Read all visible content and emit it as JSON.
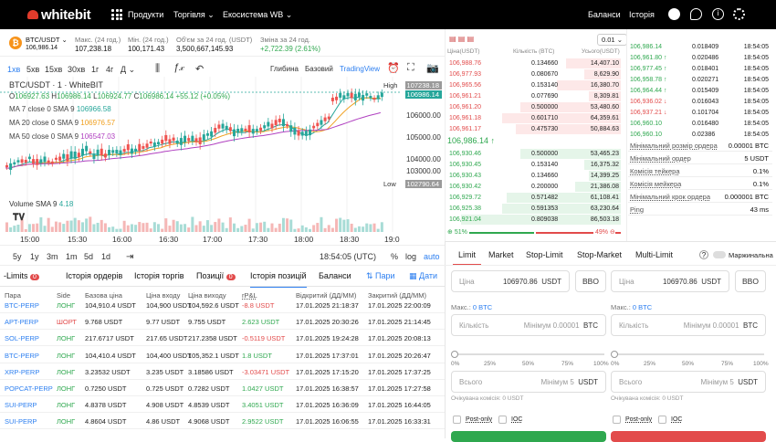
{
  "nav": {
    "logo": "whitebit",
    "items": [
      "Продукти",
      "Торгівля",
      "Екосистема WB"
    ],
    "balances": "Баланси",
    "history": "Історія"
  },
  "ticker": {
    "pair": "BTC/USDT",
    "price": "106,986.14",
    "max_label": "Макс. (24 год.)",
    "max": "107,238.18",
    "min_label": "Мін. (24 год.)",
    "min": "100,171.43",
    "vol_label": "Об'єм за 24 год. (USDT)",
    "vol": "3,500,667,145.93",
    "chg_label": "Зміна за 24 год.",
    "chg": "+2,722.39 (2.61%)"
  },
  "toolbar": {
    "intervals": [
      "1хв",
      "5хв",
      "15хв",
      "30хв",
      "1г",
      "4г",
      "Д"
    ],
    "views": [
      "Глибина",
      "Базовий",
      "TradingView"
    ]
  },
  "chart": {
    "symbol": "BTC/USDT · 1 · WhiteBIT",
    "o": "106927.63",
    "h": "106986.14",
    "l": "106924.77",
    "c": "106986.14",
    "change": "+55.12 (+0.05%)",
    "ma": [
      {
        "label": "MA 7 close 0 SMA 9",
        "value": "106966.58",
        "color": "#26a69a"
      },
      {
        "label": "MA 20 close 0 SMA 9",
        "value": "106976.57",
        "color": "#f0a020"
      },
      {
        "label": "MA 50 close 0 SMA 9",
        "value": "106547.03",
        "color": "#b040c0"
      }
    ],
    "high_label": "High",
    "high": "107238.18",
    "last": "106986.14",
    "low_label": "Low",
    "low": "102790.64",
    "yticks": [
      "106000.00",
      "105000.00",
      "104000.00",
      "103000.00"
    ],
    "xticks": [
      "15:00",
      "15:30",
      "16:00",
      "16:30",
      "17:00",
      "17:30",
      "18:00",
      "18:30",
      "19:0"
    ],
    "volume_label": "Volume SMA 9",
    "volume_val": "4.18"
  },
  "ranges": {
    "items": [
      "5y",
      "1y",
      "3m",
      "1m",
      "5d",
      "1d"
    ],
    "time": "18:54:05 (UTC)",
    "pct": "%",
    "log": "log",
    "auto": "auto"
  },
  "orderbook": {
    "group": "0.01",
    "h_price": "Ціна(USDT)",
    "h_qty": "Кількість (BTC)",
    "h_total": "Усього(USDT)",
    "last": "106,986.14 ↑",
    "asks": [
      [
        "106,988.76",
        "0.134660",
        "14,407.10"
      ],
      [
        "106,977.93",
        "0.080670",
        "8,629.90"
      ],
      [
        "106,965.56",
        "0.153140",
        "16,380.70"
      ],
      [
        "106,961.21",
        "0.077690",
        "8,309.81"
      ],
      [
        "106,961.20",
        "0.500000",
        "53,480.60"
      ],
      [
        "106,961.18",
        "0.601710",
        "64,359.61"
      ],
      [
        "106,961.17",
        "0.475730",
        "50,884.63"
      ]
    ],
    "bids": [
      [
        "106,930.46",
        "0.500000",
        "53,465.23"
      ],
      [
        "106,930.45",
        "0.153140",
        "16,375.32"
      ],
      [
        "106,930.43",
        "0.134660",
        "14,399.25"
      ],
      [
        "106,930.42",
        "0.200000",
        "21,386.08"
      ],
      [
        "106,929.72",
        "0.571482",
        "61,108.41"
      ],
      [
        "106,925.38",
        "0.591353",
        "63,230.64"
      ],
      [
        "106,921.04",
        "0.809038",
        "86,503.18"
      ]
    ],
    "buy_pct": "51%",
    "sell_pct": "49%"
  },
  "trades": [
    [
      "106,986.14",
      "0.018409",
      "18:54:05"
    ],
    [
      "106,961.80 ↑",
      "0.020486",
      "18:54:05"
    ],
    [
      "106,977.45 ↑",
      "0.018401",
      "18:54:05"
    ],
    [
      "106,958.78 ↑",
      "0.020271",
      "18:54:05"
    ],
    [
      "106,964.44 ↑",
      "0.015409",
      "18:54:05"
    ],
    [
      "106,936.02 ↓",
      "0.016043",
      "18:54:05"
    ],
    [
      "106,937.21 ↓",
      "0.101704",
      "18:54:05"
    ],
    [
      "106,960.10",
      "0.016480",
      "18:54:05"
    ],
    [
      "106,960.10",
      "0.02386",
      "18:54:05"
    ]
  ],
  "info": [
    [
      "Мінімальний розмір ордера",
      "0.00001 BTC"
    ],
    [
      "Мінімальний ордер",
      "5 USDT"
    ],
    [
      "Комісія тейкера",
      "0.1%"
    ],
    [
      "Комісія мейкера",
      "0.1%"
    ],
    [
      "Мінімальний крок ордера",
      "0.000001 BTC"
    ],
    [
      "Ping",
      "43 ms"
    ]
  ],
  "bottom": {
    "tabs": [
      "-Limits",
      "Історія ордерів",
      "Історія торгів",
      "Позиції",
      "Історія позицій",
      "Баланси"
    ],
    "limits_count": "0",
    "pos_count": "0",
    "pairs_link": "Пари",
    "dates_link": "Дати",
    "headers": [
      "Пара",
      "Side",
      "Базова ціна",
      "Ціна входу",
      "Ціна виходу",
      "rP&L",
      "Відкритий (ДД/ММ)",
      "Закритий (ДД/ММ)"
    ],
    "rows": [
      [
        "BTC-PERP",
        "ЛОНГ",
        "104,910.4 USDT",
        "104,900 USDT",
        "104,592.6 USDT",
        "-8.8 USDT",
        "17.01.2025 21:18:37",
        "17.01.2025 22:00:09"
      ],
      [
        "APT-PERP",
        "ШОРТ",
        "9.768 USDT",
        "9.77 USDT",
        "9.755 USDT",
        "2.623 USDT",
        "17.01.2025 20:30:26",
        "17.01.2025 21:14:45"
      ],
      [
        "SOL-PERP",
        "ЛОНГ",
        "217.6717 USDT",
        "217.65 USDT",
        "217.2358 USDT",
        "-0.5119 USDT",
        "17.01.2025 19:24:28",
        "17.01.2025 20:08:13"
      ],
      [
        "BTC-PERP",
        "ЛОНГ",
        "104,410.4 USDT",
        "104,400 USDT",
        "105,352.1 USDT",
        "1.8 USDT",
        "17.01.2025 17:37:01",
        "17.01.2025 20:26:47"
      ],
      [
        "XRP-PERP",
        "ЛОНГ",
        "3.23532 USDT",
        "3.235 USDT",
        "3.18586 USDT",
        "-3.03471 USDT",
        "17.01.2025 17:15:20",
        "17.01.2025 17:37:25"
      ],
      [
        "POPCAT-PERP",
        "ЛОНГ",
        "0.7250 USDT",
        "0.725 USDT",
        "0.7282 USDT",
        "1.0427 USDT",
        "17.01.2025 16:38:57",
        "17.01.2025 17:27:58"
      ],
      [
        "SUI-PERP",
        "ЛОНГ",
        "4.8378 USDT",
        "4.908 USDT",
        "4.8539 USDT",
        "3.4051 USDT",
        "17.01.2025 16:36:09",
        "17.01.2025 16:44:05"
      ],
      [
        "SUI-PERP",
        "ЛОНГ",
        "4.8604 USDT",
        "4.86 USDT",
        "4.9068 USDT",
        "2.9522 USDT",
        "17.01.2025 16:06:55",
        "17.01.2025 16:33:31"
      ]
    ]
  },
  "form": {
    "tabs": [
      "Limit",
      "Market",
      "Stop-Limit",
      "Stop-Market",
      "Multi-Limit"
    ],
    "margin": "Маржинальна",
    "price_label": "Ціна",
    "price": "106970.86",
    "usdt": "USDT",
    "bbo": "BBO",
    "max_label": "Макс.:",
    "max_val": "0 BTC",
    "qty_label": "Кількість",
    "qty_min": "Мінімум 0.00001",
    "btc": "BTC",
    "total_label": "Всього",
    "total_min": "Мінімум 5",
    "pcts": [
      "0%",
      "25%",
      "50%",
      "75%",
      "100%"
    ],
    "fee": "Очікувана комісія: 0 USDT",
    "postonly": "Post-only",
    "ioc": "IOC"
  }
}
